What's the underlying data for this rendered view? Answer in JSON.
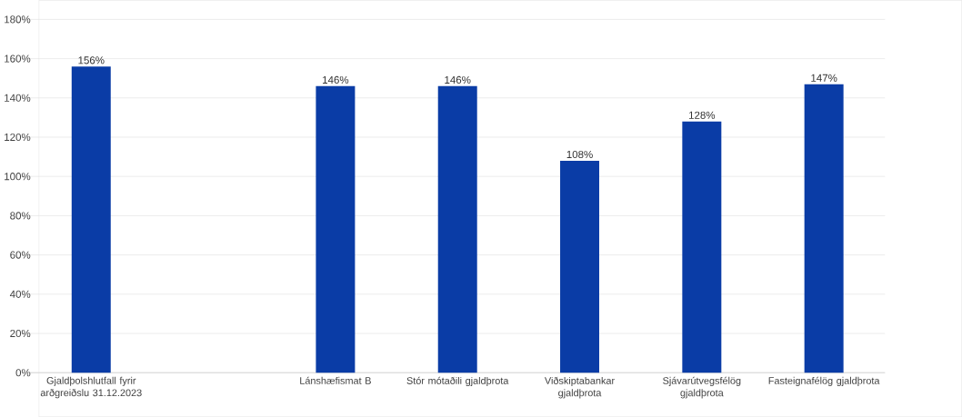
{
  "chart_data": {
    "type": "bar",
    "categories": [
      "Gjaldþolshlutfall fyrir arðgreiðslu 31.12.2023",
      null,
      "Lánshæfismat B",
      "Stór mótaðili gjaldþrota",
      "Viðskiptabankar gjaldþrota",
      "Sjávarútvegsfélög gjaldþrota",
      "Fasteignafélög gjaldþrota"
    ],
    "values": [
      156,
      null,
      146,
      146,
      108,
      128,
      147
    ],
    "value_labels": [
      "156%",
      null,
      "146%",
      "146%",
      "108%",
      "128%",
      "147%"
    ],
    "color": "#0a3ca6",
    "ylim": [
      0,
      180
    ],
    "yticks": [
      {
        "value": 0,
        "label": "0%"
      },
      {
        "value": 20,
        "label": "20%"
      },
      {
        "value": 40,
        "label": "40%"
      },
      {
        "value": 60,
        "label": "60%"
      },
      {
        "value": 80,
        "label": "80%"
      },
      {
        "value": 100,
        "label": "100%"
      },
      {
        "value": 120,
        "label": "120%"
      },
      {
        "value": 140,
        "label": "140%"
      },
      {
        "value": 160,
        "label": "160%"
      },
      {
        "value": 180,
        "label": "180%"
      }
    ],
    "grid": "y"
  }
}
